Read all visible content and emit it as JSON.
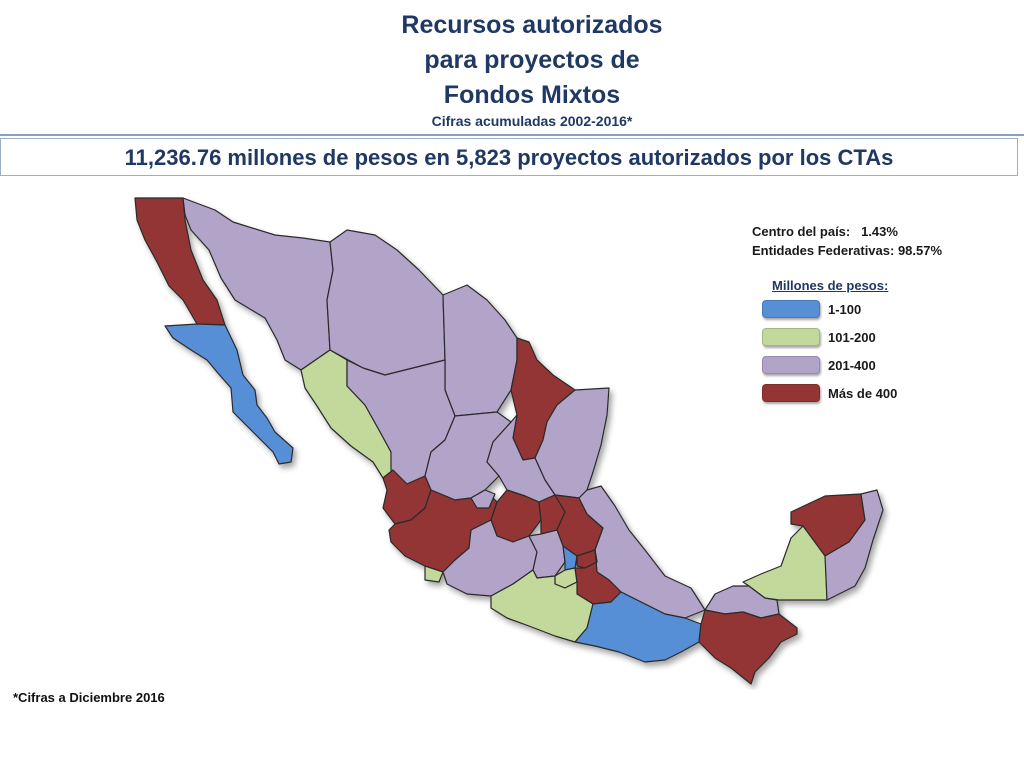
{
  "title": {
    "line1": "Recursos autorizados",
    "line2": "para proyectos de",
    "line3": "Fondos Mixtos",
    "subtitle": "Cifras acumuladas 2002-2016*"
  },
  "banner": "11,236.76 millones de pesos en 5,823 proyectos autorizados por los CTAs",
  "shares": {
    "centro_label": "Centro del país:",
    "centro_value": "1.43%",
    "entidades_label": "Entidades Federativas:",
    "entidades_value": "98.57%"
  },
  "legend": {
    "title": "Millones de pesos:",
    "items": [
      {
        "label": "1-100",
        "color": "#568fd6"
      },
      {
        "label": "101-200",
        "color": "#c3d89b"
      },
      {
        "label": "201-400",
        "color": "#b2a3c9"
      },
      {
        "label": "Más de 400",
        "color": "#943535"
      }
    ]
  },
  "map": {
    "states": [
      {
        "name": "Baja California",
        "range": "Más de 400"
      },
      {
        "name": "Baja California Sur",
        "range": "1-100"
      },
      {
        "name": "Sonora",
        "range": "201-400"
      },
      {
        "name": "Chihuahua",
        "range": "201-400"
      },
      {
        "name": "Coahuila",
        "range": "201-400"
      },
      {
        "name": "Nuevo León",
        "range": "Más de 400"
      },
      {
        "name": "Tamaulipas",
        "range": "201-400"
      },
      {
        "name": "Sinaloa",
        "range": "101-200"
      },
      {
        "name": "Durango",
        "range": "201-400"
      },
      {
        "name": "Zacatecas",
        "range": "201-400"
      },
      {
        "name": "San Luis Potosí",
        "range": "201-400"
      },
      {
        "name": "Nayarit",
        "range": "Más de 400"
      },
      {
        "name": "Jalisco",
        "range": "Más de 400"
      },
      {
        "name": "Aguascalientes",
        "range": "201-400"
      },
      {
        "name": "Guanajuato",
        "range": "Más de 400"
      },
      {
        "name": "Querétaro",
        "range": "Más de 400"
      },
      {
        "name": "Hidalgo",
        "range": "Más de 400"
      },
      {
        "name": "Veracruz",
        "range": "201-400"
      },
      {
        "name": "Colima",
        "range": "101-200"
      },
      {
        "name": "Michoacán",
        "range": "201-400"
      },
      {
        "name": "Estado de México",
        "range": "201-400"
      },
      {
        "name": "Ciudad de México",
        "range": "1-100"
      },
      {
        "name": "Morelos",
        "range": "101-200"
      },
      {
        "name": "Tlaxcala",
        "range": "Más de 400"
      },
      {
        "name": "Puebla",
        "range": "Más de 400"
      },
      {
        "name": "Guerrero",
        "range": "101-200"
      },
      {
        "name": "Oaxaca",
        "range": "1-100"
      },
      {
        "name": "Tabasco",
        "range": "201-400"
      },
      {
        "name": "Chiapas",
        "range": "Más de 400"
      },
      {
        "name": "Campeche",
        "range": "101-200"
      },
      {
        "name": "Yucatán",
        "range": "Más de 400"
      },
      {
        "name": "Quintana Roo",
        "range": "201-400"
      }
    ]
  },
  "footnote": "*Cifras a Diciembre 2016"
}
